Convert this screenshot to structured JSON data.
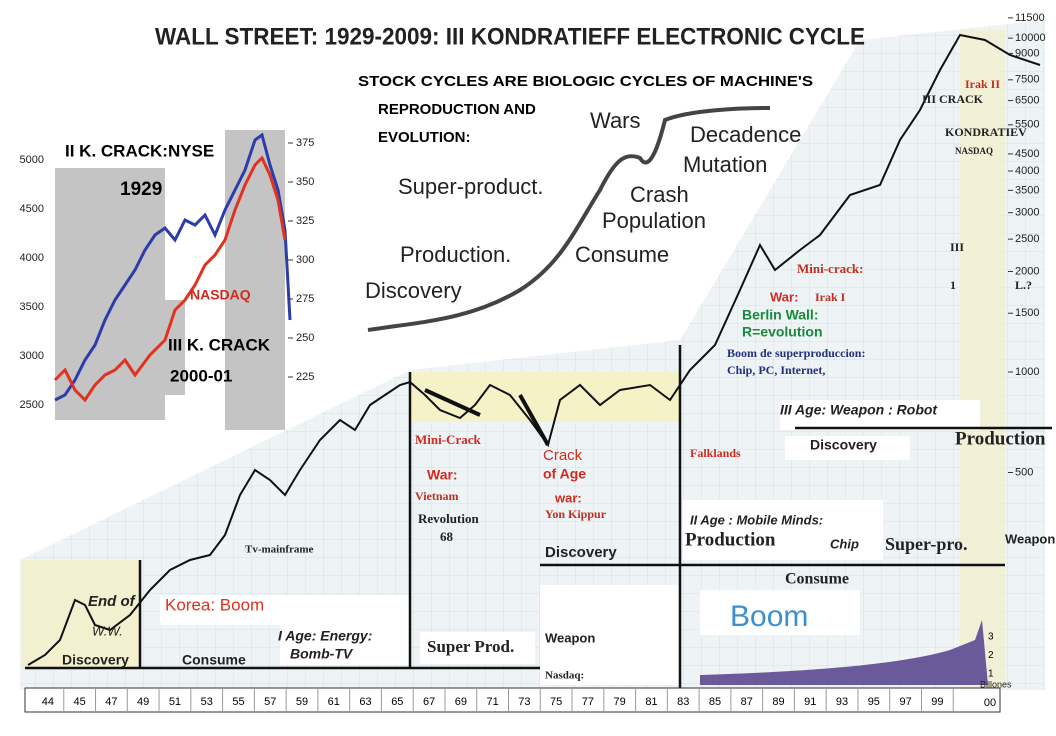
{
  "title": "WALL STREET: 1929-2009: III KONDRATIEFF ELECTRONIC CYCLE",
  "heading": [
    "STOCK CYCLES ARE BIOLOGIC CYCLES OF MACHINE'S",
    "REPRODUCTION AND",
    "EVOLUTION:"
  ],
  "cycle": {
    "discovery": "Discovery",
    "production": "Production.",
    "consume": "Consume",
    "super_product": "Super-product.",
    "crash": "Crash",
    "population": "Population",
    "wars": "Wars",
    "decadence": "Decadence",
    "mutation": "Mutation"
  },
  "inset": {
    "top_label": "II K. CRACK:NYSE",
    "year": "1929",
    "nasdaq": "NASDAQ",
    "crack": "III K. CRACK",
    "crack_years": "2000-01",
    "left_ticks": [
      5000,
      4500,
      4000,
      3500,
      3000,
      2500
    ],
    "right_ticks": [
      375,
      350,
      325,
      300,
      275,
      250,
      225
    ]
  },
  "right_axis": [
    11500,
    10000,
    9000,
    7500,
    6500,
    5500,
    4500,
    4000,
    3500,
    3000,
    2500,
    2000,
    1500,
    1000,
    500
  ],
  "annotations": [
    "Irak II",
    "III CRACK",
    "KONDRATIEV",
    "NASDAQ",
    "III",
    "1",
    "L.?",
    "Mini-crack:",
    "War:",
    "Irak I",
    "Berlin Wall:",
    "R=evolution",
    "Boom de superproduccion:",
    "Chip, PC, Internet,",
    "III Age: Weapon : Robot",
    "Discovery",
    "Production",
    "Falklands",
    "II  Age : Mobile Minds:",
    "Chip",
    "Super-pro.",
    "Weapon",
    "Production",
    "Consume",
    "Boom",
    "Mini-Crack",
    "War:",
    "Vietnam",
    "Revolution",
    "68",
    "Crack",
    "of Age",
    "war:",
    "Yon Kippur",
    "Discovery",
    "Tv-mainframe",
    "End of",
    "W.W.",
    "Korea: Boom",
    "I Age:  Energy:",
    "Bomb-TV",
    "Super Prod.",
    "Weapon",
    "Discovery",
    "Consume",
    "Nasdaq:",
    "Billones"
  ],
  "nasdaq_ticks": [
    3,
    2,
    1
  ],
  "last_year": "00",
  "years": [
    "44",
    "45",
    "47",
    "49",
    "51",
    "53",
    "55",
    "57",
    "59",
    "61",
    "63",
    "65",
    "67",
    "69",
    "71",
    "73",
    "75",
    "77",
    "79",
    "81",
    "83",
    "85",
    "87",
    "89",
    "91",
    "93",
    "95",
    "97",
    "99"
  ]
}
